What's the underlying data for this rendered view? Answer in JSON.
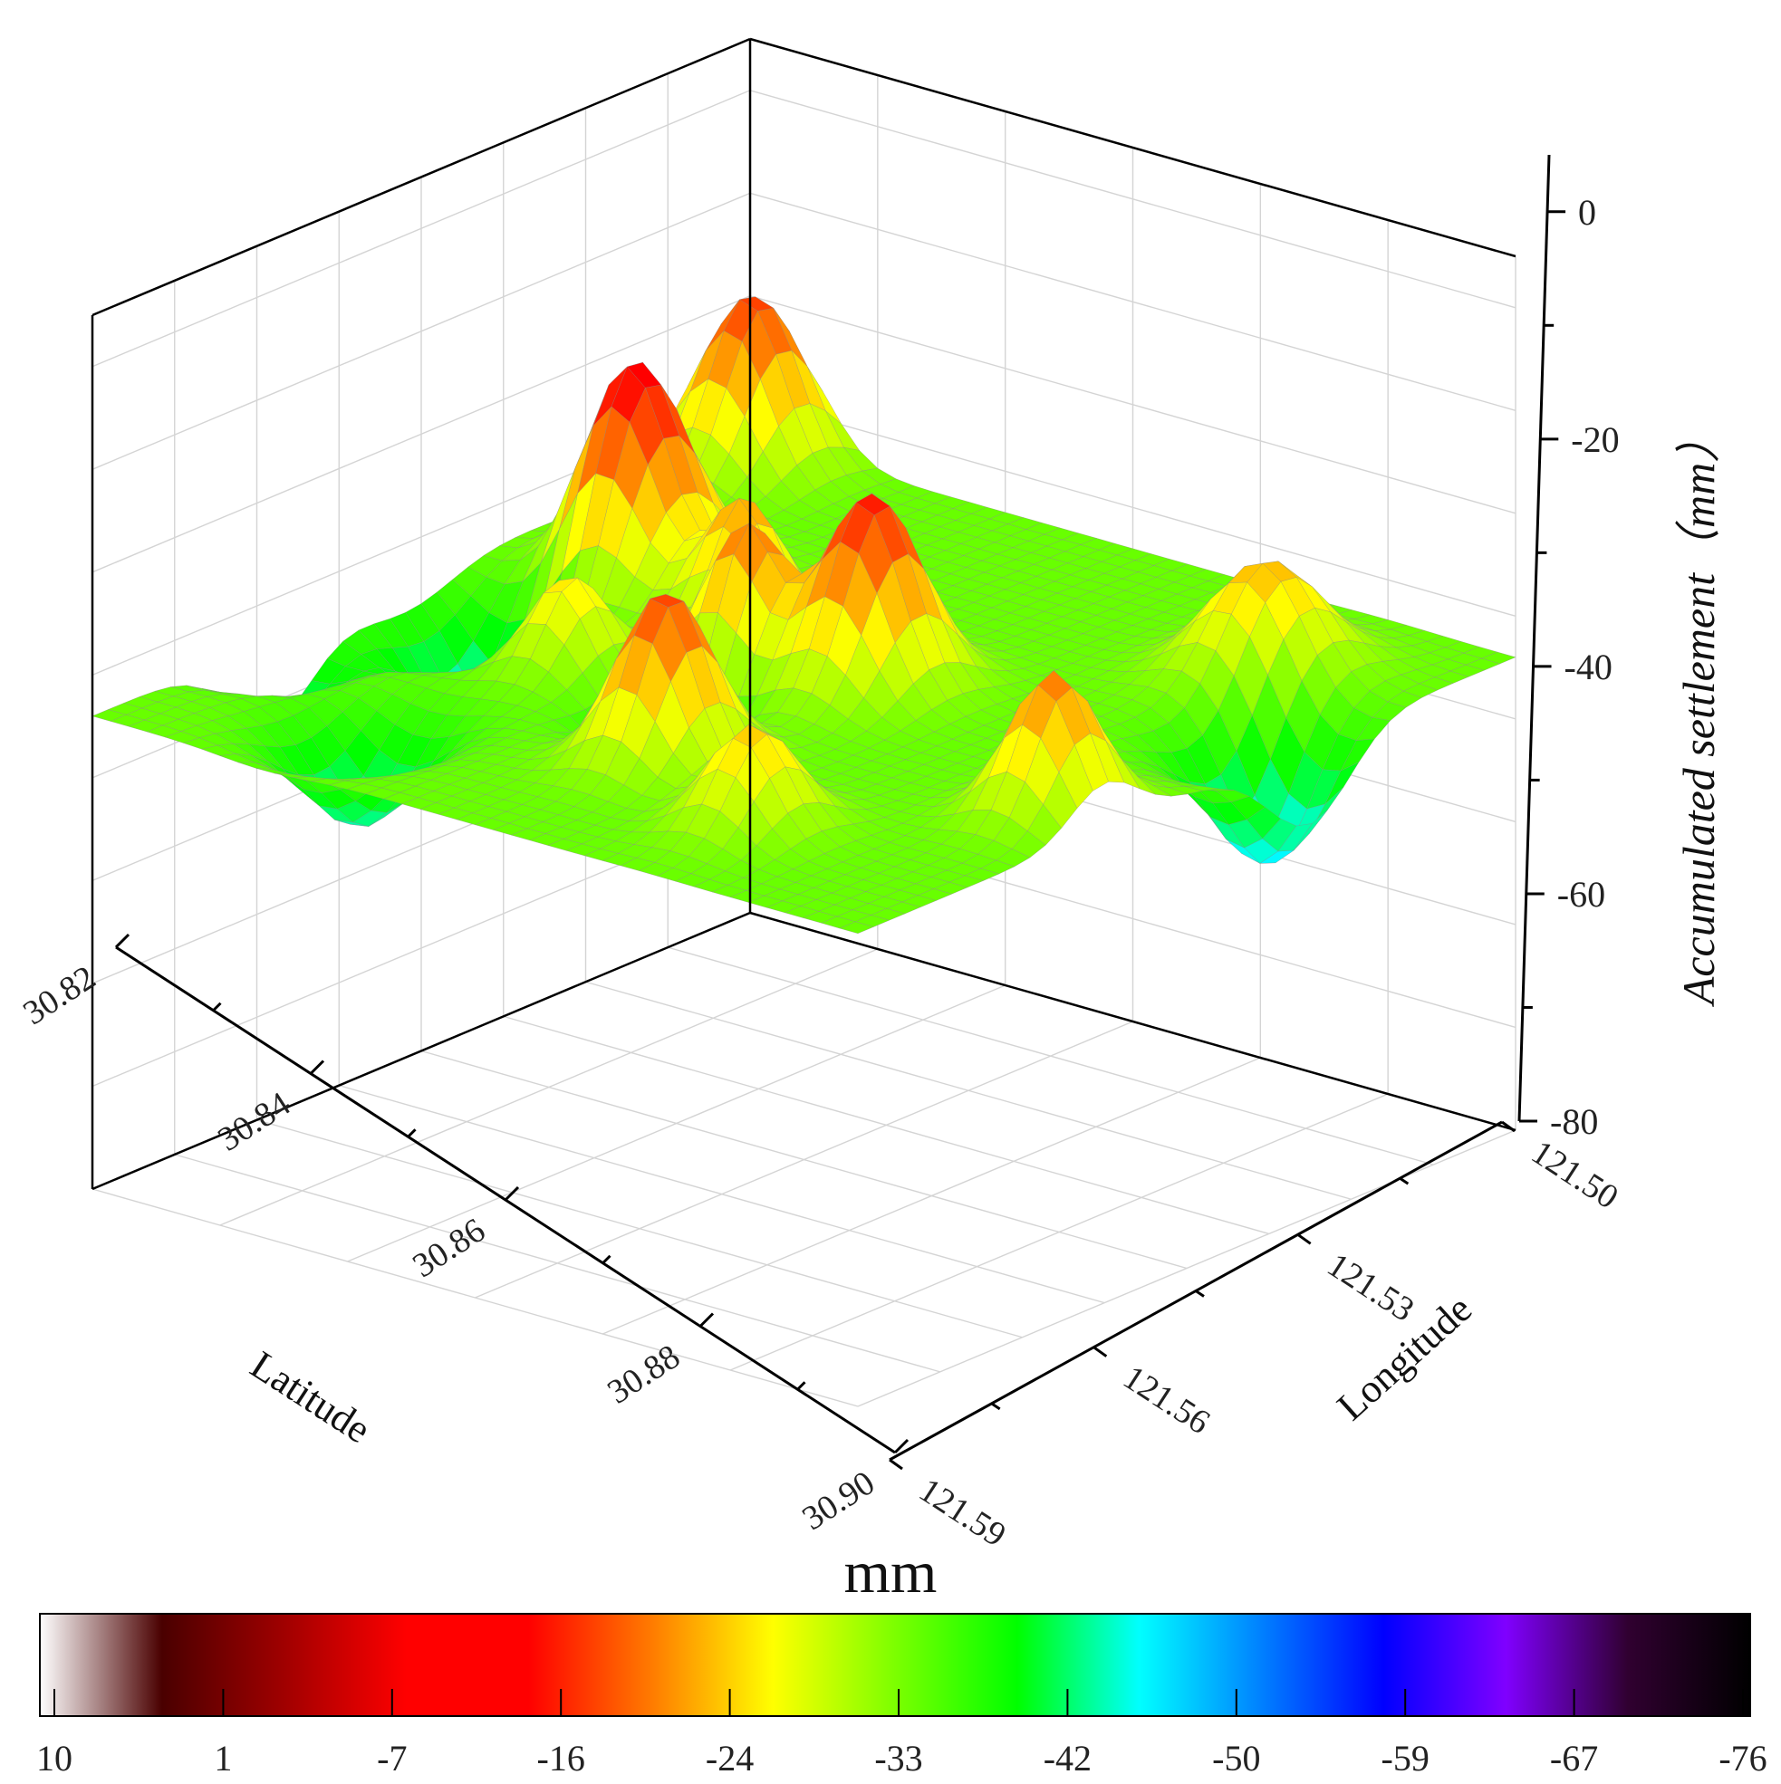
{
  "chart_data": {
    "type": "surface3d",
    "title": "",
    "axes": {
      "x": {
        "label": "Latitude",
        "range": [
          30.82,
          30.9
        ],
        "ticks": [
          "30.82",
          "30.84",
          "30.86",
          "30.88",
          "30.90"
        ]
      },
      "y": {
        "label": "Longitude",
        "range": [
          121.5,
          121.59
        ],
        "ticks": [
          "121.50",
          "121.53",
          "121.56",
          "121.59"
        ]
      },
      "z": {
        "label": "Accumulated settlement（mm）",
        "range": [
          -80,
          5
        ],
        "ticks": [
          "0",
          "-20",
          "-40",
          "-60",
          "-80"
        ]
      }
    },
    "grid": true,
    "surface": {
      "base": -34,
      "peaks": [
        {
          "lat": 30.825,
          "lon": 121.505,
          "amp": 17,
          "spread": 0.0045
        },
        {
          "lat": 30.85,
          "lon": 121.515,
          "amp": 22,
          "spread": 0.005
        },
        {
          "lat": 30.857,
          "lon": 121.55,
          "amp": 19,
          "spread": 0.0045
        },
        {
          "lat": 30.88,
          "lon": 121.548,
          "amp": 17,
          "spread": 0.0042
        },
        {
          "lat": 30.86,
          "lon": 121.538,
          "amp": 14,
          "spread": 0.0035
        },
        {
          "lat": 30.887,
          "lon": 121.565,
          "amp": 10,
          "spread": 0.004
        },
        {
          "lat": 30.835,
          "lon": 121.575,
          "amp": 11,
          "spread": 0.005
        },
        {
          "lat": 30.87,
          "lon": 121.584,
          "amp": 14,
          "spread": 0.004
        },
        {
          "lat": 30.852,
          "lon": 121.53,
          "amp": 12,
          "spread": 0.0035
        },
        {
          "lat": 30.868,
          "lon": 121.525,
          "amp": 9,
          "spread": 0.0035
        }
      ],
      "troughs": [
        {
          "lat": 30.862,
          "lon": 121.51,
          "amp": 14,
          "spread": 0.0055
        },
        {
          "lat": 30.888,
          "lon": 121.52,
          "amp": 10,
          "spread": 0.005
        },
        {
          "lat": 30.845,
          "lon": 121.585,
          "amp": 13,
          "spread": 0.005
        },
        {
          "lat": 30.878,
          "lon": 121.5,
          "amp": 8,
          "spread": 0.005
        },
        {
          "lat": 30.872,
          "lon": 121.54,
          "amp": 8,
          "spread": 0.004
        }
      ]
    },
    "colorbar": {
      "title": "mm",
      "ticks": [
        "10",
        "1",
        "-7",
        "-16",
        "-24",
        "-33",
        "-42",
        "-50",
        "-59",
        "-67",
        "-76"
      ],
      "stops": [
        "#ffffff",
        "#4a0000",
        "#a00000",
        "#ff0000",
        "#ff0000",
        "#ff7a00",
        "#ffff00",
        "#7cff00",
        "#00ff00",
        "#00ffff",
        "#0080ff",
        "#0000ff",
        "#8000ff",
        "#300030",
        "#000000"
      ]
    }
  }
}
